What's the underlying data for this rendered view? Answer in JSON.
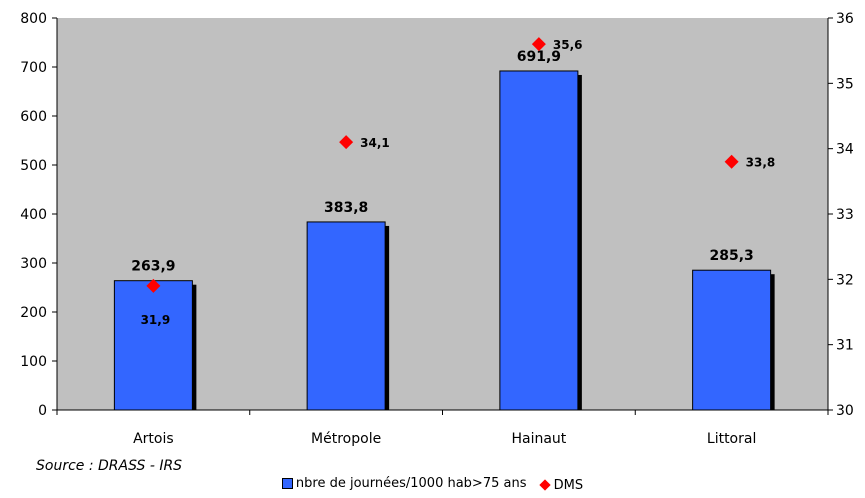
{
  "chart_data": {
    "type": "bar",
    "categories": [
      "Artois",
      "Métropole",
      "Hainaut",
      "Littoral"
    ],
    "series": [
      {
        "name": "nbre de journées/1000 hab>75 ans",
        "type": "bar",
        "axis": "left",
        "values": [
          263.9,
          383.8,
          691.9,
          285.3
        ],
        "labels": [
          "263,9",
          "383,8",
          "691,9",
          "285,3"
        ]
      },
      {
        "name": "DMS",
        "type": "scatter",
        "axis": "right",
        "values": [
          31.9,
          34.1,
          35.6,
          33.8
        ],
        "labels": [
          "31,9",
          "34,1",
          "35,6",
          "33,8"
        ]
      }
    ],
    "y_left": {
      "min": 0,
      "max": 800,
      "step": 100,
      "ticks": [
        "0",
        "100",
        "200",
        "300",
        "400",
        "500",
        "600",
        "700",
        "800"
      ]
    },
    "y_right": {
      "min": 30,
      "max": 36,
      "step": 1,
      "ticks": [
        "30",
        "31",
        "32",
        "33",
        "34",
        "35",
        "36"
      ]
    },
    "legend_position": "bottom",
    "plot_background": "#c0c0c0",
    "bar_color": "#3366ff",
    "point_color": "#ff0000",
    "source": "Source : DRASS - IRS"
  }
}
